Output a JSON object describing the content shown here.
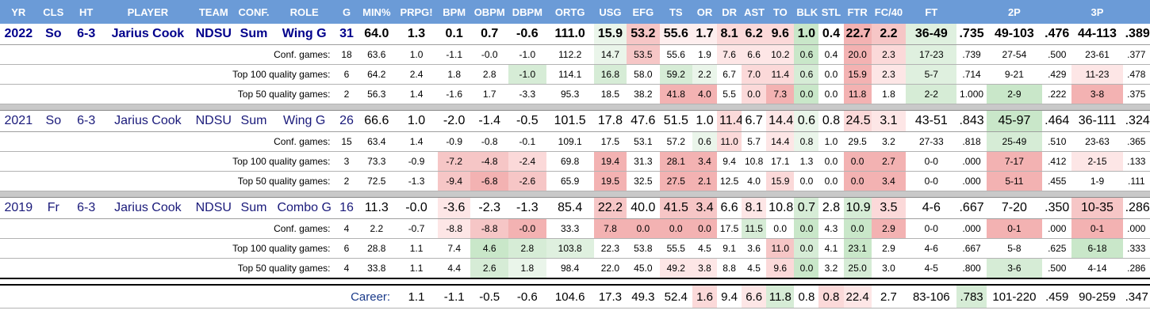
{
  "columns": [
    "YR",
    "CLS",
    "HT",
    "PLAYER",
    "TEAM",
    "CONF.",
    "ROLE",
    "G",
    "MIN%",
    "PRPG!",
    "BPM",
    "OBPM",
    "DBPM",
    "ORTG",
    "USG",
    "EFG",
    "TS",
    "OR",
    "DR",
    "AST",
    "TO",
    "BLK",
    "STL",
    "FTR",
    "FC/40",
    "FT",
    "",
    "2P",
    "",
    "3P",
    ""
  ],
  "seasons": [
    {
      "key": "2022",
      "main": {
        "yr": "2022",
        "cls": "So",
        "ht": "6-3",
        "player": "Jarius Cook",
        "team": "NDSU",
        "conf": "Sum",
        "role": "Wing G",
        "vals": [
          "31",
          "64.0",
          "1.3",
          "0.1",
          "0.7",
          "-0.6",
          "111.0",
          "15.9",
          "53.2",
          "55.6",
          "1.7",
          "8.1",
          "6.2",
          "9.6",
          "1.0",
          "0.4",
          "22.7",
          "2.2",
          "36-49",
          ".735",
          "49-103",
          ".476",
          "44-113",
          ".389"
        ],
        "bgs": [
          "",
          "",
          "",
          "",
          "",
          "",
          "#eaf5ea",
          "#f6c6c6",
          "#fdeeee",
          "#fdeeee",
          "#fbd9d9",
          "#fbd9d9",
          "#fbd9d9",
          "#c9e7c9",
          "",
          "#f3b2b2",
          "#f6c6c6",
          "#dff0df",
          "",
          "",
          "",
          "",
          "",
          ""
        ]
      },
      "splits": [
        {
          "label": "Conf. games:",
          "vals": [
            "18",
            "63.6",
            "1.0",
            "-1.1",
            "-0.0",
            "-1.0",
            "112.2",
            "14.7",
            "53.5",
            "55.6",
            "1.9",
            "7.6",
            "6.6",
            "10.2",
            "0.6",
            "0.4",
            "20.0",
            "2.3",
            "17-23",
            ".739",
            "27-54",
            ".500",
            "23-61",
            ".377"
          ],
          "bgs": [
            "",
            "",
            "",
            "",
            "",
            "",
            "#eaf5ea",
            "#f6c6c6",
            "",
            "",
            "#fde6e6",
            "#fde6e6",
            "#fde6e6",
            "#c9e7c9",
            "",
            "#f3b2b2",
            "#fbd9d9",
            "#dff0df",
            "",
            "",
            "",
            "",
            "",
            ""
          ]
        },
        {
          "label": "Top 100 quality games:",
          "vals": [
            "6",
            "64.2",
            "2.4",
            "1.8",
            "2.8",
            "-1.0",
            "114.1",
            "16.8",
            "58.0",
            "59.2",
            "2.2",
            "6.7",
            "7.0",
            "11.4",
            "0.6",
            "0.0",
            "15.9",
            "2.3",
            "5-7",
            ".714",
            "9-21",
            ".429",
            "11-23",
            ".478"
          ],
          "bgs": [
            "",
            "",
            "",
            "",
            "#d6ecd6",
            "",
            "#d6ecd6",
            "",
            "#d6ecd6",
            "#eaf5ea",
            "",
            "#fbd9d9",
            "#fbd9d9",
            "#d6ecd6",
            "",
            "#f3b2b2",
            "#fde6e6",
            "#dff0df",
            "",
            "",
            "",
            "#fde6e6",
            "",
            "#c9e7c9"
          ]
        },
        {
          "label": "Top 50 quality games:",
          "vals": [
            "2",
            "56.3",
            "1.4",
            "-1.6",
            "1.7",
            "-3.3",
            "95.3",
            "18.5",
            "38.2",
            "41.8",
            "4.0",
            "5.5",
            "0.0",
            "7.3",
            "0.0",
            "0.0",
            "11.8",
            "1.8",
            "2-2",
            "1.000",
            "2-9",
            ".222",
            "3-8",
            ".375"
          ],
          "bgs": [
            "",
            "",
            "",
            "",
            "",
            "",
            "",
            "",
            "#f3b2b2",
            "#f3b2b2",
            "",
            "#fbd9d9",
            "#f3b2b2",
            "#c9e7c9",
            "",
            "#f3b2b2",
            "",
            "#d6ecd6",
            "",
            "#c9e7c9",
            "",
            "#f3b2b2",
            "",
            ""
          ]
        }
      ]
    },
    {
      "key": "2021",
      "main": {
        "yr": "2021",
        "cls": "So",
        "ht": "6-3",
        "player": "Jarius Cook",
        "team": "NDSU",
        "conf": "Sum",
        "role": "Wing G",
        "vals": [
          "26",
          "66.6",
          "1.0",
          "-2.0",
          "-1.4",
          "-0.5",
          "101.5",
          "17.8",
          "47.6",
          "51.5",
          "1.0",
          "11.4",
          "6.7",
          "14.4",
          "0.6",
          "0.8",
          "24.5",
          "3.1",
          "43-51",
          ".843",
          "45-97",
          ".464",
          "36-111",
          ".324"
        ],
        "bgs": [
          "",
          "",
          "",
          "",
          "",
          "",
          "",
          "",
          "",
          "",
          "#fbd9d9",
          "",
          "#fde6e6",
          "#eaf5ea",
          "",
          "#fbd9d9",
          "#fde6e6",
          "",
          "",
          "#c9e7c9",
          "",
          "",
          "",
          ""
        ]
      },
      "splits": [
        {
          "label": "Conf. games:",
          "vals": [
            "15",
            "63.4",
            "1.4",
            "-0.9",
            "-0.8",
            "-0.1",
            "109.1",
            "17.5",
            "53.1",
            "57.2",
            "0.6",
            "11.0",
            "5.7",
            "14.4",
            "0.8",
            "1.0",
            "29.5",
            "3.2",
            "27-33",
            ".818",
            "25-49",
            ".510",
            "23-63",
            ".365"
          ],
          "bgs": [
            "",
            "",
            "",
            "",
            "",
            "",
            "",
            "",
            "",
            "#eaf5ea",
            "#fbd9d9",
            "",
            "#fde6e6",
            "#eaf5ea",
            "",
            "",
            "",
            "",
            "",
            "#d6ecd6",
            "",
            "",
            "",
            ""
          ]
        },
        {
          "label": "Top 100 quality games:",
          "vals": [
            "3",
            "73.3",
            "-0.9",
            "-7.2",
            "-4.8",
            "-2.4",
            "69.8",
            "19.4",
            "31.3",
            "28.1",
            "3.4",
            "9.4",
            "10.8",
            "17.1",
            "1.3",
            "0.0",
            "0.0",
            "2.7",
            "0-0",
            ".000",
            "7-17",
            ".412",
            "2-15",
            ".133"
          ],
          "bgs": [
            "",
            "",
            "#f6c6c6",
            "#f6c6c6",
            "#fbd9d9",
            "",
            "#f3b2b2",
            "",
            "#f3b2b2",
            "#f3b2b2",
            "",
            "",
            "",
            "",
            "",
            "#f3b2b2",
            "#f3b2b2",
            "",
            "",
            "#f3b2b2",
            "",
            "#fde6e6",
            "",
            "#f3b2b2"
          ]
        },
        {
          "label": "Top 50 quality games:",
          "vals": [
            "2",
            "72.5",
            "-1.3",
            "-9.4",
            "-6.8",
            "-2.6",
            "65.9",
            "19.5",
            "32.5",
            "27.5",
            "2.1",
            "12.5",
            "4.0",
            "15.9",
            "0.0",
            "0.0",
            "0.0",
            "3.4",
            "0-0",
            ".000",
            "5-11",
            ".455",
            "1-9",
            ".111"
          ],
          "bgs": [
            "",
            "",
            "#f6c6c6",
            "#f3b2b2",
            "#f6c6c6",
            "",
            "#f3b2b2",
            "",
            "#f3b2b2",
            "#f3b2b2",
            "",
            "",
            "#fbd9d9",
            "",
            "",
            "#f3b2b2",
            "#f3b2b2",
            "",
            "",
            "#f3b2b2",
            "",
            "",
            "",
            "#f3b2b2"
          ]
        }
      ]
    },
    {
      "key": "2019",
      "main": {
        "yr": "2019",
        "cls": "Fr",
        "ht": "6-3",
        "player": "Jarius Cook",
        "team": "NDSU",
        "conf": "Sum",
        "role": "Combo G",
        "vals": [
          "16",
          "11.3",
          "-0.0",
          "-3.6",
          "-2.3",
          "-1.3",
          "85.4",
          "22.2",
          "40.0",
          "41.5",
          "3.4",
          "6.6",
          "8.1",
          "10.8",
          "0.7",
          "2.8",
          "10.9",
          "3.5",
          "4-6",
          ".667",
          "7-20",
          ".350",
          "10-35",
          ".286"
        ],
        "bgs": [
          "",
          "",
          "#fde6e6",
          "",
          "",
          "",
          "#f6c6c6",
          "",
          "#f6c6c6",
          "#f6c6c6",
          "",
          "#fde6e6",
          "",
          "#d6ecd6",
          "",
          "#d6ecd6",
          "#fbd9d9",
          "",
          "",
          "",
          "",
          "#f6c6c6",
          "",
          "#fbd9d9"
        ]
      },
      "splits": [
        {
          "label": "Conf. games:",
          "vals": [
            "4",
            "2.2",
            "-0.7",
            "-8.8",
            "-8.8",
            "-0.0",
            "33.3",
            "7.8",
            "0.0",
            "0.0",
            "0.0",
            "17.5",
            "11.5",
            "0.0",
            "0.0",
            "4.3",
            "0.0",
            "2.9",
            "0-0",
            ".000",
            "0-1",
            ".000",
            "0-1",
            ".000"
          ],
          "bgs": [
            "",
            "",
            "#fde6e6",
            "#f6c6c6",
            "#f3b2b2",
            "",
            "#f3b2b2",
            "#f3b2b2",
            "#f3b2b2",
            "#f3b2b2",
            "",
            "#d6ecd6",
            "",
            "#c9e7c9",
            "",
            "#c9e7c9",
            "#f3b2b2",
            "",
            "",
            "#f3b2b2",
            "",
            "#f3b2b2",
            "",
            "#f3b2b2"
          ]
        },
        {
          "label": "Top 100 quality games:",
          "vals": [
            "6",
            "28.8",
            "1.1",
            "7.4",
            "4.6",
            "2.8",
            "103.8",
            "22.3",
            "53.8",
            "55.5",
            "4.5",
            "9.1",
            "3.6",
            "11.0",
            "0.0",
            "4.1",
            "23.1",
            "2.9",
            "4-6",
            ".667",
            "5-8",
            ".625",
            "6-18",
            ".333"
          ],
          "bgs": [
            "",
            "",
            "",
            "#c9e7c9",
            "#d6ecd6",
            "#dff0df",
            "",
            "",
            "",
            "",
            "",
            "",
            "#f6c6c6",
            "#d6ecd6",
            "",
            "#c9e7c9",
            "",
            "",
            "",
            "",
            "",
            "#c9e7c9",
            "",
            ""
          ]
        },
        {
          "label": "Top 50 quality games:",
          "vals": [
            "4",
            "33.8",
            "1.1",
            "4.4",
            "2.6",
            "1.8",
            "98.4",
            "22.0",
            "45.0",
            "49.2",
            "3.8",
            "8.8",
            "4.5",
            "9.6",
            "0.0",
            "3.2",
            "25.0",
            "3.0",
            "4-5",
            ".800",
            "3-6",
            ".500",
            "4-14",
            ".286"
          ],
          "bgs": [
            "",
            "",
            "",
            "#d6ecd6",
            "#eaf5ea",
            "",
            "",
            "",
            "#fde6e6",
            "#fde6e6",
            "",
            "",
            "#fbd9d9",
            "#c9e7c9",
            "",
            "#d6ecd6",
            "",
            "",
            "",
            "#d6ecd6",
            "",
            "",
            "",
            "#fbd9d9"
          ]
        }
      ]
    }
  ],
  "career": {
    "label": "Career:",
    "vals": [
      "1.1",
      "-1.1",
      "-0.5",
      "-0.6",
      "104.6",
      "17.3",
      "49.3",
      "52.4",
      "1.6",
      "9.4",
      "6.6",
      "11.8",
      "0.8",
      "0.8",
      "22.4",
      "2.7",
      "83-106",
      ".783",
      "101-220",
      ".459",
      "90-259",
      ".347"
    ],
    "bgs": [
      "",
      "",
      "",
      "",
      "",
      "",
      "",
      "",
      "#fbd9d9",
      "",
      "#fde6e6",
      "#d6ecd6",
      "",
      "#fbd9d9",
      "#fde6e6",
      "",
      "",
      "#d6ecd6",
      "",
      "",
      "",
      ""
    ]
  }
}
